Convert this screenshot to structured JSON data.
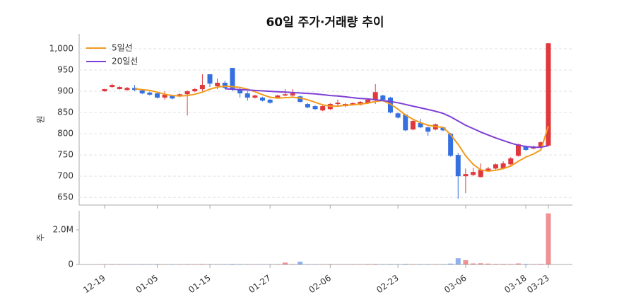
{
  "chart_data": {
    "type": "candlestick",
    "title": "60일 주가·거래량 추이",
    "categories": [
      "12-19",
      null,
      null,
      null,
      null,
      null,
      null,
      "01-05",
      null,
      null,
      null,
      null,
      null,
      null,
      "01-15",
      null,
      null,
      null,
      null,
      null,
      null,
      null,
      "01-27",
      null,
      null,
      null,
      null,
      null,
      null,
      null,
      "02-06",
      null,
      null,
      null,
      null,
      null,
      null,
      null,
      null,
      "02-23",
      null,
      null,
      null,
      null,
      null,
      null,
      null,
      null,
      "03-06",
      null,
      null,
      null,
      null,
      null,
      null,
      null,
      "03-18",
      null,
      null,
      "03-23"
    ],
    "open": [
      900,
      910,
      905,
      903,
      908,
      902,
      897,
      895,
      885,
      890,
      888,
      893,
      900,
      905,
      940,
      912,
      920,
      955,
      905,
      895,
      885,
      885,
      880,
      885,
      890,
      890,
      888,
      870,
      865,
      855,
      858,
      870,
      865,
      868,
      868,
      872,
      880,
      890,
      885,
      848,
      845,
      810,
      825,
      815,
      810,
      815,
      800,
      750,
      700,
      703,
      698,
      712,
      718,
      718,
      728,
      748,
      770,
      765,
      768,
      772
    ],
    "high": [
      906,
      918,
      912,
      910,
      915,
      904,
      899,
      897,
      900,
      892,
      895,
      902,
      908,
      940,
      940,
      930,
      925,
      955,
      910,
      900,
      892,
      887,
      882,
      892,
      905,
      905,
      890,
      872,
      867,
      867,
      872,
      880,
      872,
      874,
      877,
      882,
      917,
      892,
      887,
      850,
      847,
      832,
      835,
      817,
      824,
      817,
      802,
      755,
      718,
      720,
      730,
      722,
      730,
      735,
      745,
      777,
      772,
      772,
      782,
      1013
    ],
    "low": [
      899,
      908,
      904,
      901,
      900,
      893,
      890,
      883,
      880,
      881,
      886,
      843,
      898,
      900,
      910,
      905,
      905,
      900,
      885,
      878,
      883,
      876,
      871,
      883,
      888,
      885,
      873,
      860,
      856,
      853,
      856,
      865,
      863,
      866,
      866,
      870,
      870,
      878,
      848,
      836,
      806,
      808,
      813,
      795,
      808,
      806,
      746,
      647,
      660,
      700,
      697,
      710,
      716,
      716,
      726,
      746,
      760,
      763,
      766,
      770
    ],
    "close": [
      905,
      915,
      910,
      908,
      903,
      895,
      892,
      885,
      892,
      883,
      893,
      900,
      905,
      915,
      918,
      920,
      908,
      905,
      895,
      885,
      890,
      878,
      873,
      890,
      893,
      895,
      875,
      862,
      858,
      865,
      870,
      873,
      870,
      872,
      875,
      880,
      898,
      880,
      850,
      838,
      808,
      830,
      815,
      805,
      822,
      808,
      748,
      700,
      705,
      710,
      715,
      718,
      728,
      730,
      742,
      775,
      762,
      770,
      780,
      1013
    ],
    "up_color": "#e0383c",
    "down_color": "#3470e0",
    "ylim": [
      632,
      1035
    ],
    "yticks": [
      650,
      700,
      750,
      800,
      850,
      900,
      950,
      {
        "value": 1000,
        "label": "1,000"
      }
    ],
    "ylabel": "원",
    "grid": true,
    "legend": "upper left",
    "series": [
      {
        "name": "5일선",
        "color": "#f29b1d",
        "values": [
          null,
          null,
          null,
          null,
          906,
          904,
          902,
          898,
          893,
          890,
          889,
          890,
          893,
          898,
          905,
          910,
          912,
          911,
          909,
          905,
          899,
          892,
          886,
          884,
          885,
          886,
          884,
          880,
          874,
          868,
          865,
          865,
          867,
          868,
          870,
          872,
          876,
          878,
          870,
          858,
          844,
          834,
          826,
          820,
          817,
          815,
          798,
          775,
          748,
          728,
          715,
          712,
          714,
          718,
          724,
          735,
          745,
          752,
          762,
          818
        ]
      },
      {
        "name": "20일선",
        "color": "#7e3fd6",
        "values": [
          null,
          null,
          null,
          null,
          null,
          null,
          null,
          null,
          null,
          null,
          null,
          null,
          null,
          null,
          null,
          null,
          906,
          905,
          904,
          903,
          902,
          901,
          900,
          899,
          898,
          897,
          896,
          895,
          894,
          892,
          890,
          889,
          887,
          885,
          883,
          882,
          880,
          878,
          876,
          873,
          869,
          865,
          861,
          857,
          853,
          848,
          840,
          830,
          820,
          812,
          804,
          797,
          790,
          784,
          778,
          773,
          770,
          768,
          768,
          772
        ]
      }
    ],
    "volume": {
      "ylabel": "주",
      "ylim": [
        0,
        3100000
      ],
      "yticks": [
        0,
        {
          "value": 2000000,
          "label": "2.0M"
        }
      ],
      "values": [
        15000,
        20000,
        15000,
        15000,
        15000,
        20000,
        15000,
        25000,
        15000,
        15000,
        15000,
        20000,
        15000,
        25000,
        20000,
        15000,
        20000,
        30000,
        20000,
        15000,
        15000,
        15000,
        15000,
        20000,
        110000,
        25000,
        160000,
        15000,
        15000,
        15000,
        20000,
        15000,
        15000,
        20000,
        15000,
        25000,
        30000,
        20000,
        25000,
        15000,
        30000,
        20000,
        20000,
        20000,
        15000,
        20000,
        50000,
        360000,
        250000,
        60000,
        70000,
        50000,
        30000,
        30000,
        25000,
        60000,
        30000,
        20000,
        30000,
        2950000
      ]
    }
  }
}
